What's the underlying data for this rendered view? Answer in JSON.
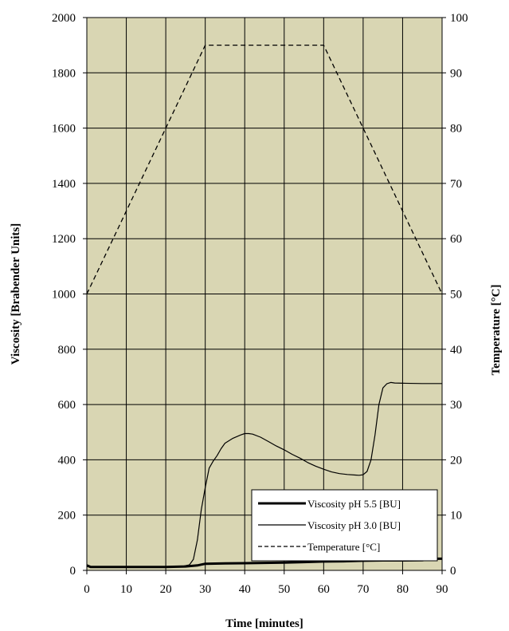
{
  "chart_data": {
    "type": "line",
    "xlabel": "Time [minutes]",
    "ylabel": "Viscosity [Brabender Units]",
    "y2label": "Temperature [°C]",
    "xlim": [
      0,
      90
    ],
    "ylim": [
      0,
      2000
    ],
    "y2lim": [
      0,
      100
    ],
    "xticks": [
      0,
      10,
      20,
      30,
      40,
      50,
      60,
      70,
      80,
      90
    ],
    "yticks": [
      0,
      200,
      400,
      600,
      800,
      1000,
      1200,
      1400,
      1600,
      1800,
      2000
    ],
    "y2ticks": [
      0,
      10,
      20,
      30,
      40,
      50,
      60,
      70,
      80,
      90,
      100
    ],
    "grid": true,
    "plot_background": "#d9d6b3",
    "legend_position": "bottom-right",
    "series": [
      {
        "name": "Viscosity pH 5.5 [BU]",
        "axis": "left",
        "style": "thick",
        "x": [
          0,
          1,
          5,
          10,
          15,
          20,
          25,
          28,
          30,
          35,
          40,
          45,
          50,
          55,
          60,
          65,
          70,
          75,
          80,
          85,
          88,
          90
        ],
        "y": [
          18,
          12,
          12,
          12,
          12,
          12,
          14,
          18,
          24,
          25,
          26,
          27,
          28,
          30,
          32,
          33,
          35,
          36,
          36,
          37,
          42,
          42
        ]
      },
      {
        "name": "Viscosity pH 3.0 [BU]",
        "axis": "left",
        "style": "thin",
        "x": [
          0,
          5,
          10,
          15,
          20,
          24,
          26,
          27,
          28,
          29,
          30,
          31,
          32,
          33,
          34,
          35,
          37,
          39,
          40,
          41,
          42,
          44,
          46,
          48,
          50,
          52,
          54,
          56,
          58,
          60,
          62,
          64,
          66,
          68,
          69,
          70,
          71,
          72,
          73,
          74,
          75,
          76,
          77,
          78,
          80,
          85,
          90
        ],
        "y": [
          14,
          12,
          12,
          12,
          12,
          14,
          20,
          40,
          110,
          220,
          300,
          370,
          395,
          415,
          440,
          460,
          478,
          490,
          495,
          495,
          493,
          482,
          466,
          450,
          436,
          420,
          406,
          390,
          377,
          366,
          356,
          350,
          347,
          345,
          344,
          346,
          358,
          400,
          490,
          600,
          660,
          675,
          680,
          678,
          677,
          676,
          676
        ]
      },
      {
        "name": "Temperature [°C]",
        "axis": "right",
        "style": "dashed",
        "x": [
          0,
          30,
          60,
          90
        ],
        "y": [
          50,
          95,
          95,
          50
        ]
      }
    ]
  }
}
